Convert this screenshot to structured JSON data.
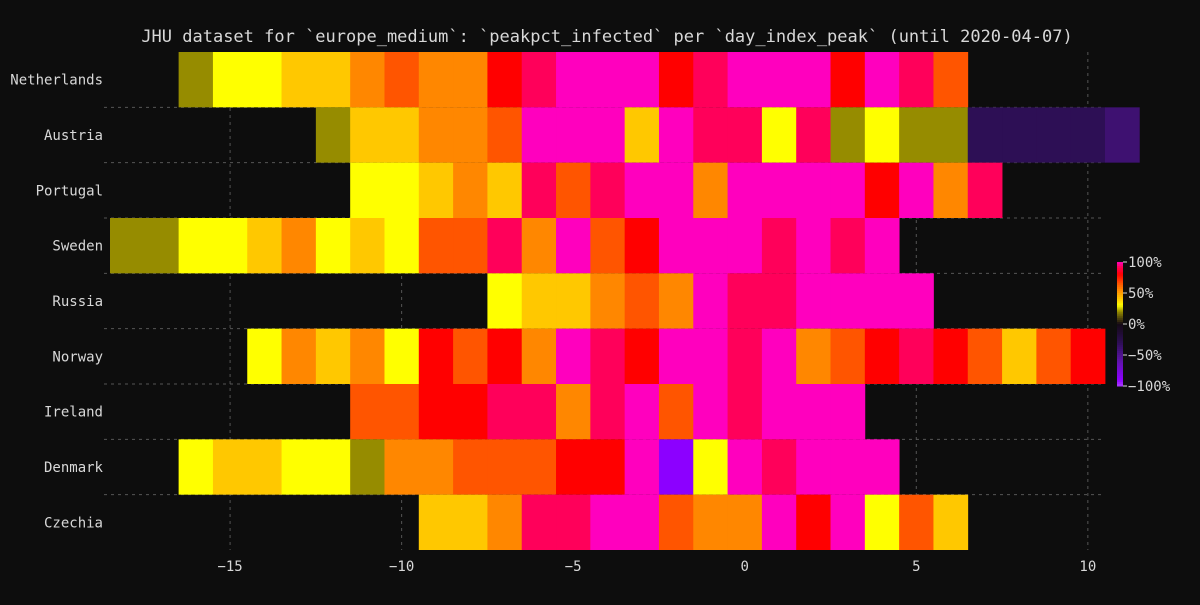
{
  "chart_data": {
    "type": "heatmap",
    "title": "JHU dataset for `europe_medium`: `peakpct_infected` per `day_index_peak` (until 2020-04-07)",
    "xlabel": "",
    "ylabel": "",
    "x_range": [
      -18.5,
      10.5
    ],
    "x_ticks": [
      -15,
      -10,
      -5,
      0,
      5,
      10
    ],
    "grid": true,
    "rows": [
      {
        "name": "Netherlands",
        "x_start": -17,
        "values": [
          null,
          20,
          30,
          30,
          40,
          40,
          55,
          65,
          55,
          55,
          80,
          92,
          100,
          100,
          100,
          80,
          92,
          100,
          100,
          100,
          80,
          100,
          92,
          65
        ]
      },
      {
        "name": "Austria",
        "x_start": -12,
        "values": [
          20,
          40,
          40,
          55,
          55,
          65,
          100,
          100,
          100,
          40,
          100,
          92,
          92,
          30,
          92,
          20,
          30,
          20,
          20,
          -30,
          -30,
          -30,
          -30,
          -40
        ]
      },
      {
        "name": "Portugal",
        "x_start": -12,
        "values": [
          null,
          30,
          30,
          40,
          55,
          40,
          92,
          65,
          92,
          100,
          100,
          55,
          100,
          100,
          100,
          100,
          80,
          100,
          55,
          92
        ]
      },
      {
        "name": "Sweden",
        "x_start": -18,
        "values": [
          20,
          20,
          30,
          30,
          40,
          55,
          30,
          40,
          30,
          65,
          65,
          92,
          55,
          100,
          65,
          80,
          100,
          100,
          100,
          92,
          100,
          92,
          100
        ]
      },
      {
        "name": "Russia",
        "x_start": -7,
        "values": [
          30,
          40,
          40,
          55,
          65,
          55,
          100,
          92,
          92,
          100,
          100,
          100,
          100
        ]
      },
      {
        "name": "Norway",
        "x_start": -14,
        "values": [
          30,
          55,
          40,
          55,
          30,
          80,
          65,
          80,
          55,
          100,
          92,
          80,
          100,
          100,
          92,
          100,
          55,
          65,
          80,
          92,
          80,
          65,
          40,
          65,
          80
        ]
      },
      {
        "name": "Ireland",
        "x_start": -11,
        "values": [
          65,
          65,
          80,
          80,
          92,
          92,
          55,
          92,
          100,
          65,
          100,
          92,
          100,
          100,
          100
        ]
      },
      {
        "name": "Denmark",
        "x_start": -16,
        "values": [
          30,
          40,
          40,
          30,
          30,
          20,
          55,
          55,
          65,
          65,
          65,
          80,
          80,
          100,
          -90,
          30,
          100,
          92,
          100,
          100,
          100
        ]
      },
      {
        "name": "Czechia",
        "x_start": -9,
        "values": [
          40,
          40,
          55,
          92,
          92,
          100,
          100,
          65,
          55,
          55,
          100,
          80,
          100,
          30,
          65,
          40
        ]
      }
    ],
    "colorbar": {
      "ticks": [
        "100%",
        "50%",
        "0%",
        "−50%",
        "−100%"
      ],
      "min": -100,
      "max": 100
    },
    "colors": {
      "background": "#0d0d0d",
      "grid": "#555555",
      "text": "#d8d8d8"
    }
  }
}
